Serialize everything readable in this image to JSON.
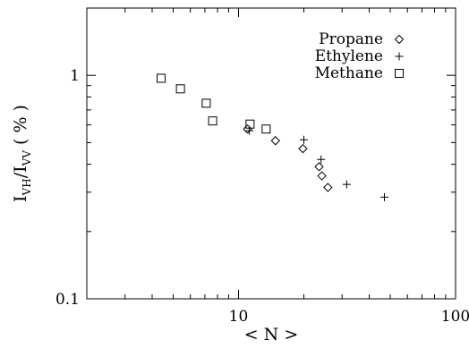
{
  "chart_data": {
    "type": "scatter",
    "title": "",
    "xlabel": "< N >",
    "ylabel_parts": {
      "main1": "I",
      "sub1": "VH",
      "slash": "/",
      "main2": "I",
      "sub2": "VV",
      "unit": " ( % )"
    },
    "x_scale": "log",
    "y_scale": "log",
    "xlim": [
      2,
      100
    ],
    "ylim": [
      0.1,
      2
    ],
    "x_ticks": [
      {
        "value": 10,
        "label": "10"
      },
      {
        "value": 100,
        "label": "100"
      }
    ],
    "y_ticks": [
      {
        "value": 0.1,
        "label": "0.1"
      },
      {
        "value": 1,
        "label": "1"
      }
    ],
    "grid": false,
    "legend_position": "top-right",
    "series": [
      {
        "name": "Propane",
        "marker": "diamond",
        "points": [
          [
            11.0,
            0.575
          ],
          [
            14.8,
            0.51
          ],
          [
            19.8,
            0.47
          ],
          [
            23.5,
            0.39
          ],
          [
            24.2,
            0.355
          ],
          [
            25.8,
            0.315
          ]
        ]
      },
      {
        "name": "Ethylene",
        "marker": "plus",
        "points": [
          [
            11.2,
            0.565
          ],
          [
            20.0,
            0.515
          ],
          [
            24.0,
            0.42
          ],
          [
            31.5,
            0.325
          ],
          [
            47.0,
            0.285
          ]
        ]
      },
      {
        "name": "Methane",
        "marker": "square",
        "points": [
          [
            4.4,
            0.97
          ],
          [
            5.4,
            0.87
          ],
          [
            7.1,
            0.75
          ],
          [
            7.6,
            0.625
          ],
          [
            11.3,
            0.605
          ],
          [
            13.4,
            0.575
          ]
        ]
      }
    ]
  }
}
